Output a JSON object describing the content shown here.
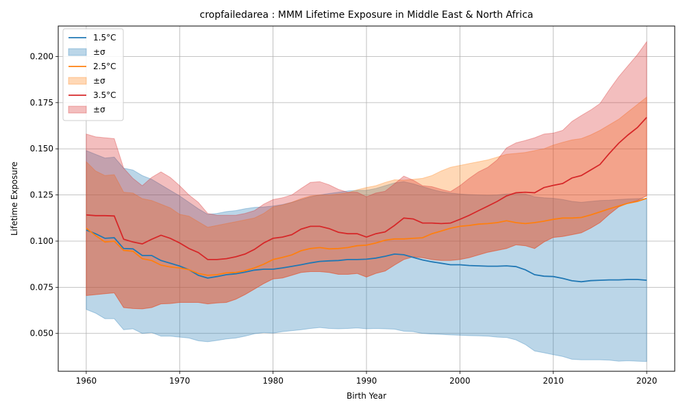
{
  "chart_data": {
    "type": "line",
    "title": "cropfailedarea : MMM Lifetime Exposure in Middle East & North Africa",
    "xlabel": "Birth Year",
    "ylabel": "Lifetime Exposure",
    "xlim": [
      1957,
      2023
    ],
    "ylim": [
      0.0295,
      0.2165
    ],
    "xticks": [
      1960,
      1970,
      1980,
      1990,
      2000,
      2010,
      2020
    ],
    "yticks": [
      0.05,
      0.075,
      0.1,
      0.125,
      0.15,
      0.175,
      0.2
    ],
    "ytick_labels": [
      "0.050",
      "0.075",
      "0.100",
      "0.125",
      "0.150",
      "0.175",
      "0.200"
    ],
    "grid": true,
    "legend_position": "upper-left",
    "x": [
      1960,
      1961,
      1962,
      1963,
      1964,
      1965,
      1966,
      1967,
      1968,
      1969,
      1970,
      1971,
      1972,
      1973,
      1974,
      1975,
      1976,
      1977,
      1978,
      1979,
      1980,
      1981,
      1982,
      1983,
      1984,
      1985,
      1986,
      1987,
      1988,
      1989,
      1990,
      1991,
      1992,
      1993,
      1994,
      1995,
      1996,
      1997,
      1998,
      1999,
      2000,
      2001,
      2002,
      2003,
      2004,
      2005,
      2006,
      2007,
      2008,
      2009,
      2010,
      2011,
      2012,
      2013,
      2014,
      2015,
      2016,
      2017,
      2018,
      2019,
      2020
    ],
    "series": [
      {
        "name": "1.5°C",
        "band_label": "±σ",
        "color": "#1f77b4",
        "values": [
          0.106,
          0.104,
          0.1015,
          0.1018,
          0.096,
          0.0958,
          0.0922,
          0.0922,
          0.0895,
          0.088,
          0.0865,
          0.0845,
          0.0815,
          0.08,
          0.0808,
          0.0818,
          0.0823,
          0.0832,
          0.0843,
          0.0848,
          0.0848,
          0.0855,
          0.0863,
          0.0872,
          0.0882,
          0.089,
          0.0893,
          0.0895,
          0.09,
          0.09,
          0.0902,
          0.0908,
          0.0918,
          0.093,
          0.0926,
          0.0912,
          0.0898,
          0.0888,
          0.088,
          0.0872,
          0.0872,
          0.0868,
          0.0866,
          0.0864,
          0.0864,
          0.0866,
          0.0862,
          0.0845,
          0.0818,
          0.081,
          0.0808,
          0.0798,
          0.0785,
          0.078,
          0.0786,
          0.0788,
          0.079,
          0.079,
          0.0792,
          0.0792,
          0.0788
        ],
        "lower": [
          0.063,
          0.061,
          0.058,
          0.058,
          0.052,
          0.0525,
          0.05,
          0.0505,
          0.0485,
          0.0485,
          0.048,
          0.0475,
          0.046,
          0.0455,
          0.0462,
          0.047,
          0.0475,
          0.0485,
          0.0498,
          0.0505,
          0.0502,
          0.051,
          0.0515,
          0.052,
          0.0527,
          0.0532,
          0.0527,
          0.0525,
          0.0527,
          0.053,
          0.0525,
          0.0527,
          0.0525,
          0.0523,
          0.0512,
          0.051,
          0.05,
          0.0497,
          0.0495,
          0.0492,
          0.049,
          0.0488,
          0.0487,
          0.0485,
          0.048,
          0.0478,
          0.0465,
          0.044,
          0.0405,
          0.0395,
          0.0385,
          0.0375,
          0.036,
          0.0357,
          0.0357,
          0.0357,
          0.0355,
          0.035,
          0.0352,
          0.035,
          0.0348
        ],
        "upper": [
          0.149,
          0.147,
          0.145,
          0.1455,
          0.1395,
          0.1385,
          0.1355,
          0.1335,
          0.1305,
          0.1275,
          0.1245,
          0.121,
          0.1175,
          0.1145,
          0.115,
          0.116,
          0.1165,
          0.1175,
          0.1183,
          0.1185,
          0.119,
          0.1198,
          0.121,
          0.1225,
          0.124,
          0.125,
          0.1258,
          0.1265,
          0.1272,
          0.1275,
          0.1275,
          0.1285,
          0.13,
          0.1315,
          0.1322,
          0.131,
          0.1295,
          0.128,
          0.1268,
          0.126,
          0.1255,
          0.1252,
          0.125,
          0.1248,
          0.125,
          0.1255,
          0.1258,
          0.1255,
          0.124,
          0.1235,
          0.1232,
          0.1225,
          0.1215,
          0.121,
          0.1215,
          0.122,
          0.1222,
          0.1225,
          0.1228,
          0.123,
          0.123
        ]
      },
      {
        "name": "2.5°C",
        "band_label": "±σ",
        "color": "#ff7f0e",
        "values": [
          0.107,
          0.103,
          0.0995,
          0.1,
          0.095,
          0.0945,
          0.0905,
          0.0895,
          0.087,
          0.086,
          0.0855,
          0.0845,
          0.0825,
          0.0815,
          0.0818,
          0.0828,
          0.083,
          0.084,
          0.0855,
          0.0875,
          0.09,
          0.0912,
          0.0925,
          0.0948,
          0.096,
          0.0965,
          0.0958,
          0.096,
          0.0965,
          0.0975,
          0.0978,
          0.099,
          0.1005,
          0.1012,
          0.1012,
          0.1015,
          0.1018,
          0.104,
          0.1055,
          0.107,
          0.108,
          0.1085,
          0.1092,
          0.1095,
          0.11,
          0.111,
          0.11,
          0.1095,
          0.11,
          0.1108,
          0.1118,
          0.1125,
          0.1125,
          0.1128,
          0.1142,
          0.1158,
          0.1175,
          0.119,
          0.1205,
          0.1215,
          0.1232
        ],
        "lower": [
          0.0705,
          0.071,
          0.0715,
          0.072,
          0.064,
          0.0635,
          0.0633,
          0.064,
          0.066,
          0.0662,
          0.0668,
          0.0668,
          0.0668,
          0.066,
          0.0665,
          0.0668,
          0.0685,
          0.071,
          0.074,
          0.077,
          0.0795,
          0.08,
          0.0815,
          0.083,
          0.0835,
          0.0835,
          0.083,
          0.082,
          0.082,
          0.0825,
          0.0805,
          0.0825,
          0.0838,
          0.087,
          0.09,
          0.0915,
          0.091,
          0.09,
          0.0895,
          0.0895,
          0.09,
          0.091,
          0.0925,
          0.094,
          0.095,
          0.096,
          0.098,
          0.0975,
          0.096,
          0.0995,
          0.102,
          0.1025,
          0.1035,
          0.1045,
          0.107,
          0.11,
          0.1145,
          0.1185,
          0.1205,
          0.122,
          0.1245
        ],
        "upper": [
          0.143,
          0.138,
          0.1355,
          0.136,
          0.1265,
          0.126,
          0.123,
          0.122,
          0.12,
          0.118,
          0.1145,
          0.1135,
          0.1105,
          0.1075,
          0.1085,
          0.1095,
          0.1105,
          0.1115,
          0.1125,
          0.115,
          0.1185,
          0.1195,
          0.121,
          0.123,
          0.1245,
          0.125,
          0.125,
          0.1255,
          0.1262,
          0.1278,
          0.129,
          0.13,
          0.1318,
          0.1332,
          0.133,
          0.1335,
          0.134,
          0.1355,
          0.138,
          0.14,
          0.141,
          0.142,
          0.143,
          0.144,
          0.1455,
          0.147,
          0.1475,
          0.148,
          0.149,
          0.15,
          0.152,
          0.1535,
          0.1548,
          0.1555,
          0.1575,
          0.16,
          0.163,
          0.166,
          0.17,
          0.174,
          0.178
        ]
      },
      {
        "name": "3.5°C",
        "band_label": "±σ",
        "color": "#d62728",
        "values": [
          0.1142,
          0.1138,
          0.1138,
          0.1136,
          0.101,
          0.0995,
          0.0985,
          0.101,
          0.1032,
          0.1015,
          0.099,
          0.096,
          0.0938,
          0.09,
          0.09,
          0.0905,
          0.0915,
          0.093,
          0.0955,
          0.099,
          0.1015,
          0.1022,
          0.1035,
          0.1065,
          0.108,
          0.108,
          0.1068,
          0.1048,
          0.104,
          0.104,
          0.1022,
          0.104,
          0.105,
          0.1085,
          0.1125,
          0.112,
          0.1098,
          0.1098,
          0.1095,
          0.1098,
          0.1118,
          0.114,
          0.1165,
          0.119,
          0.1215,
          0.1245,
          0.1262,
          0.1265,
          0.1262,
          0.129,
          0.1302,
          0.1312,
          0.1342,
          0.1355,
          0.1385,
          0.1415,
          0.1475,
          0.153,
          0.1575,
          0.1615,
          0.167
        ],
        "lower": [
          0.0705,
          0.071,
          0.0715,
          0.072,
          0.064,
          0.0635,
          0.0633,
          0.064,
          0.066,
          0.0662,
          0.0668,
          0.0668,
          0.0668,
          0.066,
          0.0665,
          0.0668,
          0.0685,
          0.071,
          0.074,
          0.077,
          0.0795,
          0.08,
          0.0815,
          0.083,
          0.0835,
          0.0835,
          0.083,
          0.082,
          0.082,
          0.0825,
          0.0805,
          0.0825,
          0.0838,
          0.087,
          0.09,
          0.0915,
          0.091,
          0.09,
          0.0895,
          0.0895,
          0.09,
          0.091,
          0.0925,
          0.094,
          0.095,
          0.096,
          0.098,
          0.0975,
          0.096,
          0.0995,
          0.102,
          0.1025,
          0.1035,
          0.1045,
          0.107,
          0.11,
          0.1145,
          0.1185,
          0.1205,
          0.122,
          0.1245
        ],
        "upper": [
          0.158,
          0.1565,
          0.156,
          0.1555,
          0.1395,
          0.134,
          0.13,
          0.1345,
          0.1375,
          0.1345,
          0.13,
          0.125,
          0.121,
          0.115,
          0.114,
          0.114,
          0.114,
          0.115,
          0.1165,
          0.12,
          0.1225,
          0.1235,
          0.125,
          0.1285,
          0.1318,
          0.1322,
          0.1305,
          0.128,
          0.1265,
          0.1265,
          0.124,
          0.126,
          0.127,
          0.131,
          0.1352,
          0.133,
          0.13,
          0.1295,
          0.128,
          0.1268,
          0.13,
          0.134,
          0.1375,
          0.14,
          0.144,
          0.1505,
          0.1532,
          0.1545,
          0.156,
          0.158,
          0.1585,
          0.16,
          0.1648,
          0.168,
          0.171,
          0.1745,
          0.182,
          0.189,
          0.195,
          0.201,
          0.208
        ]
      }
    ]
  }
}
